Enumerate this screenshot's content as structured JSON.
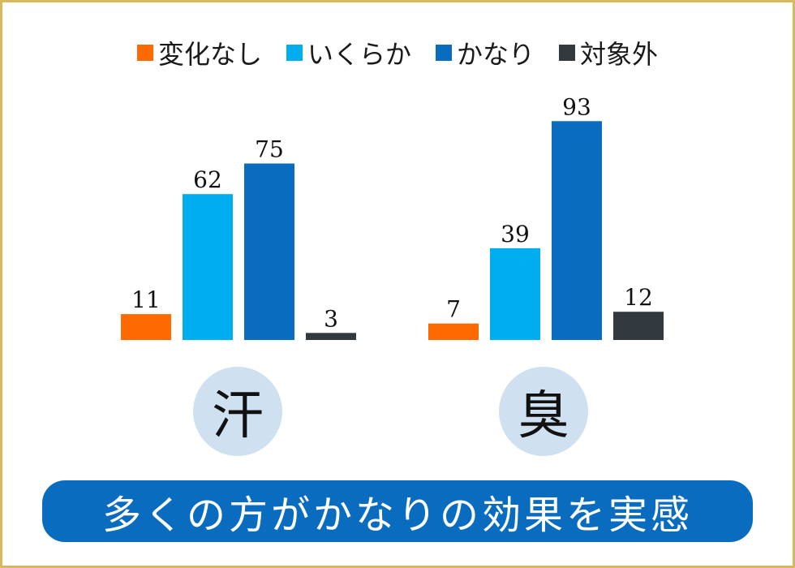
{
  "colors": {
    "frame": "#d8b85a",
    "circle": "#cfe0f0",
    "banner": "#0a6cbf"
  },
  "chart_data": {
    "type": "bar",
    "categories": [
      "汗",
      "臭"
    ],
    "series": [
      {
        "name": "変化なし",
        "color": "#ff6a00",
        "values": [
          11,
          7
        ]
      },
      {
        "name": "いくらか",
        "color": "#00aeef",
        "values": [
          62,
          39
        ]
      },
      {
        "name": "かなり",
        "color": "#0a6cbf",
        "values": [
          75,
          93
        ]
      },
      {
        "name": "対象外",
        "color": "#333a3f",
        "values": [
          3,
          12
        ]
      }
    ],
    "ylim": [
      0,
      100
    ],
    "grid": false,
    "legend_position": "top",
    "title": "",
    "xlabel": "",
    "ylabel": ""
  },
  "banner": {
    "text": "多くの方がかなりの効果を実感"
  }
}
